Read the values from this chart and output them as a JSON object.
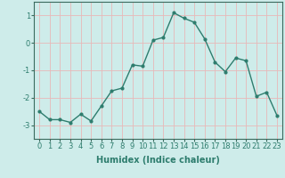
{
  "x": [
    0,
    1,
    2,
    3,
    4,
    5,
    6,
    7,
    8,
    9,
    10,
    11,
    12,
    13,
    14,
    15,
    16,
    17,
    18,
    19,
    20,
    21,
    22,
    23
  ],
  "y": [
    -2.5,
    -2.8,
    -2.8,
    -2.9,
    -2.6,
    -2.85,
    -2.3,
    -1.75,
    -1.65,
    -0.8,
    -0.85,
    0.1,
    0.2,
    1.1,
    0.9,
    0.75,
    0.15,
    -0.7,
    -1.05,
    -0.55,
    -0.65,
    -1.95,
    -1.8,
    -2.65
  ],
  "line_color": "#2e7d6e",
  "marker": "o",
  "markersize": 2,
  "linewidth": 1.0,
  "xlabel": "Humidex (Indice chaleur)",
  "xlim": [
    -0.5,
    23.5
  ],
  "ylim": [
    -3.5,
    1.5
  ],
  "yticks": [
    -3,
    -2,
    -1,
    0,
    1
  ],
  "xticks": [
    0,
    1,
    2,
    3,
    4,
    5,
    6,
    7,
    8,
    9,
    10,
    11,
    12,
    13,
    14,
    15,
    16,
    17,
    18,
    19,
    20,
    21,
    22,
    23
  ],
  "bg_color": "#ceecea",
  "grid_color": "#e8b8b8",
  "tick_fontsize": 6,
  "xlabel_fontsize": 7
}
